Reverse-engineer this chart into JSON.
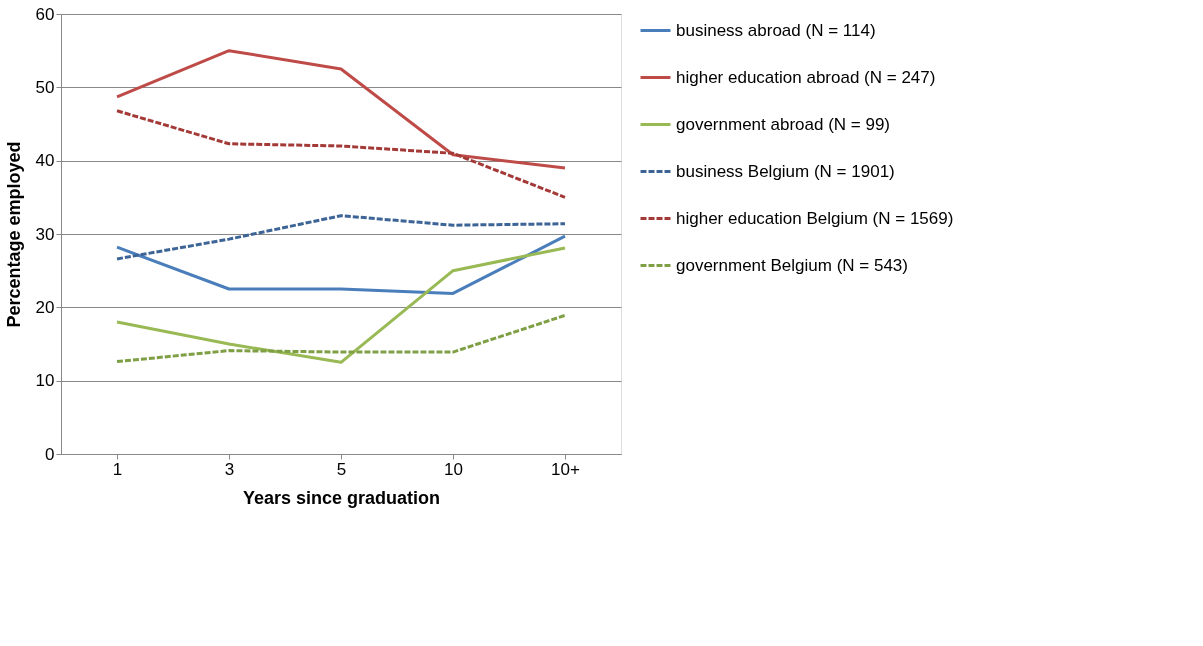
{
  "chart_data": {
    "type": "line",
    "xlabel": "Years since graduation",
    "ylabel": "Percentage employed",
    "categories": [
      "1",
      "3",
      "5",
      "10",
      "10+"
    ],
    "series": [
      {
        "name": "business abroad (N = 114)",
        "color": "#4a7ebb",
        "line_style": "solid",
        "values": [
          28.2,
          22.5,
          22.5,
          21.9,
          29.7
        ]
      },
      {
        "name": "higher education abroad (N = 247)",
        "color": "#be4b48",
        "line_style": "solid",
        "values": [
          48.7,
          55,
          52.5,
          40.8,
          39
        ]
      },
      {
        "name": "government abroad (N = 99)",
        "color": "#98b954",
        "line_style": "solid",
        "values": [
          18,
          15,
          12.5,
          25,
          28.1
        ]
      },
      {
        "name": "business Belgium (N = 1901)",
        "color": "#3c6496",
        "line_style": "dashed",
        "values": [
          26.6,
          29.3,
          32.5,
          31.2,
          31.4
        ]
      },
      {
        "name": "higher education Belgium (N = 1569)",
        "color": "#a33a38",
        "line_style": "dashed",
        "values": [
          46.8,
          42.3,
          42,
          41,
          35
        ]
      },
      {
        "name": "government Belgium (N = 543)",
        "color": "#7f9f45",
        "line_style": "dashed",
        "values": [
          12.6,
          14.1,
          13.9,
          13.9,
          18.9
        ]
      }
    ],
    "ylim": [
      0,
      60
    ],
    "yticks": [
      0,
      10,
      20,
      30,
      40,
      50,
      60
    ],
    "grid": "y",
    "legend": "right",
    "marker": "none"
  }
}
